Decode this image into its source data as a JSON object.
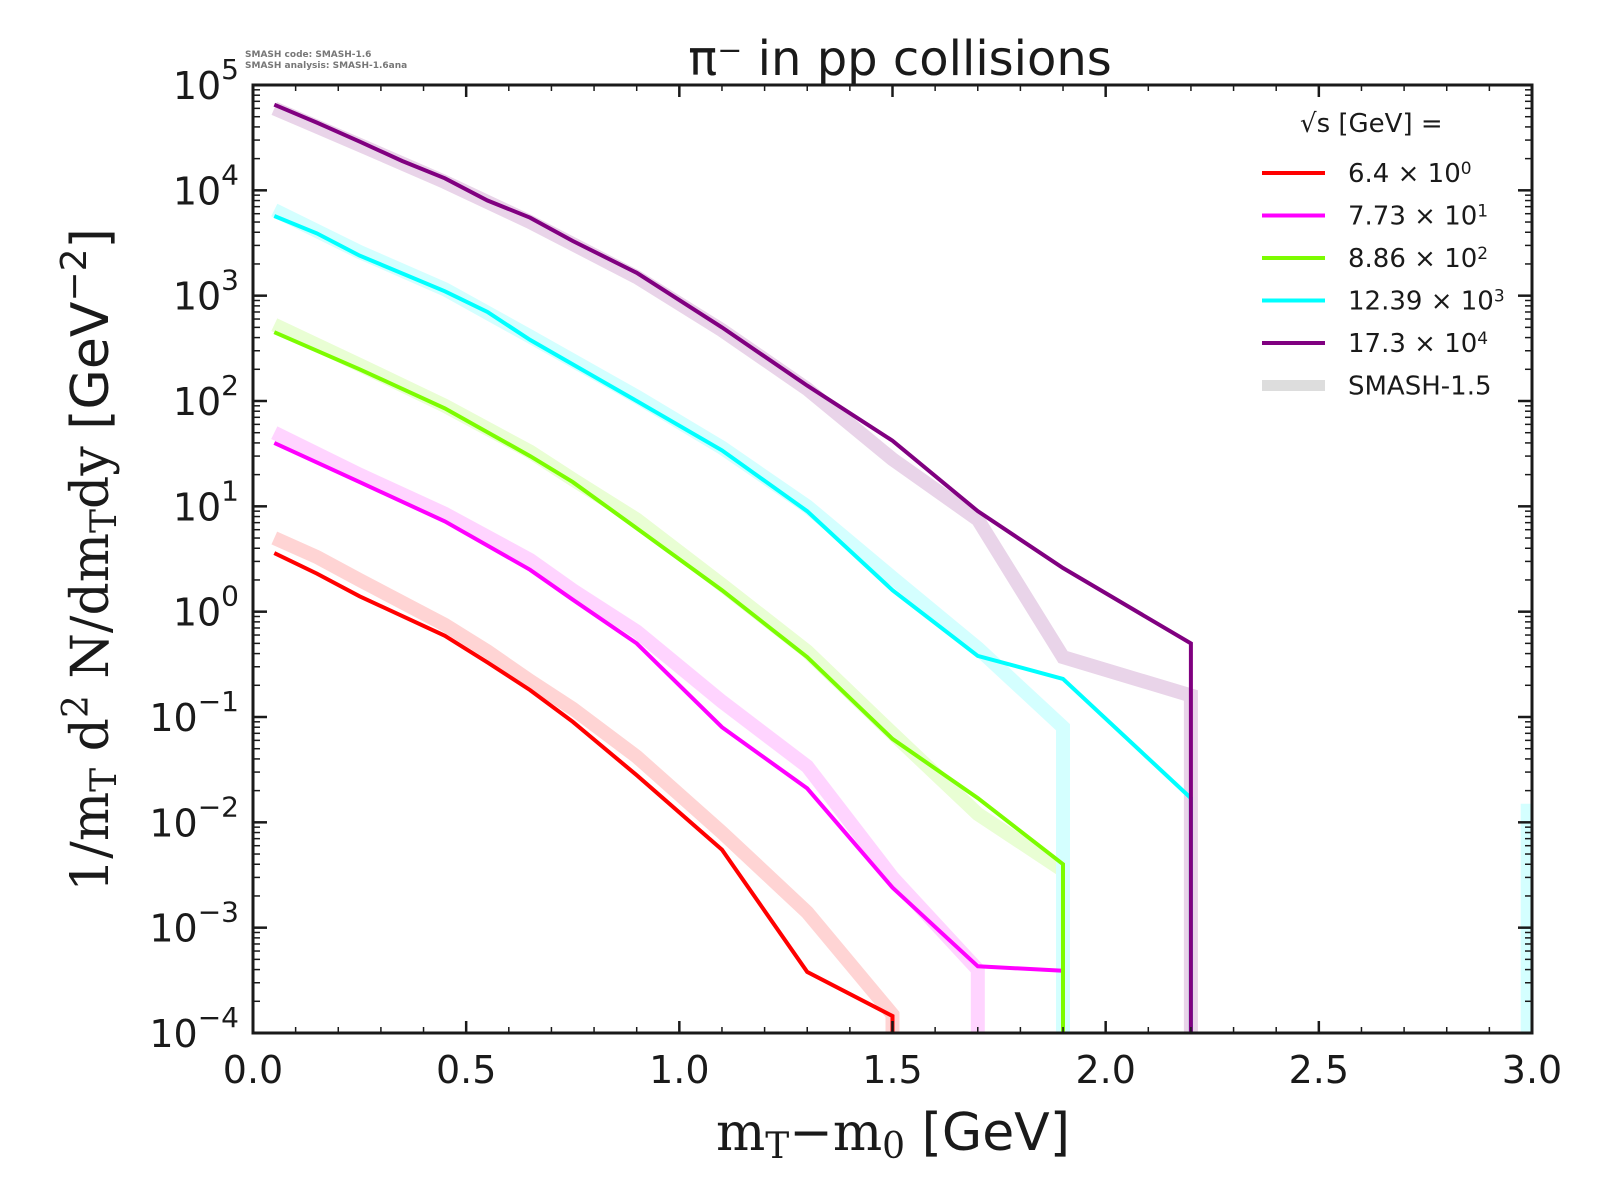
{
  "meta": {
    "line1": "SMASH code:      SMASH-1.6",
    "line2": "SMASH analysis: SMASH-1.6ana"
  },
  "chart_data": {
    "type": "line",
    "title": "π⁻ in pp collisions",
    "xlabel": "m_T−m_0 [GeV]",
    "ylabel": "1/m_T d² N/dm_T dy [GeV⁻²]",
    "yscale": "log",
    "xlim": [
      0.0,
      3.0
    ],
    "ylim": [
      0.0001,
      100000
    ],
    "xticks": [
      "0.0",
      "0.5",
      "1.0",
      "1.5",
      "2.0",
      "2.5",
      "3.0"
    ],
    "yticks": [
      {
        "base": "10",
        "exp": "5"
      },
      {
        "base": "10",
        "exp": "4"
      },
      {
        "base": "10",
        "exp": "3"
      },
      {
        "base": "10",
        "exp": "2"
      },
      {
        "base": "10",
        "exp": "1"
      },
      {
        "base": "10",
        "exp": "0"
      },
      {
        "base": "10",
        "exp": "−1"
      },
      {
        "base": "10",
        "exp": "−2"
      },
      {
        "base": "10",
        "exp": "−3"
      },
      {
        "base": "10",
        "exp": "−4"
      }
    ],
    "grid": false,
    "legend": {
      "placement": "top-right",
      "title": "√s  [GeV] =",
      "entries": [
        {
          "label": "6.4 × 10",
          "sup": "0",
          "color": "#ff0000"
        },
        {
          "label": "7.73 × 10",
          "sup": "1",
          "color": "#ff00ff"
        },
        {
          "label": "8.86 × 10",
          "sup": "2",
          "color": "#7cfc00"
        },
        {
          "label": "12.39 × 10",
          "sup": "3",
          "color": "#00ffff"
        },
        {
          "label": "17.3 × 10",
          "sup": "4",
          "color": "#800080"
        },
        {
          "label": "SMASH-1.5",
          "sup": "",
          "color": "#dddddd"
        }
      ]
    },
    "series": [
      {
        "name": "6.4 × 10^0",
        "color": "#ff0000",
        "x": [
          0.05,
          0.15,
          0.25,
          0.45,
          0.55,
          0.65,
          0.75,
          0.9,
          1.1,
          1.3,
          1.5,
          1.5
        ],
        "y": [
          3.6,
          2.3,
          1.4,
          0.59,
          0.33,
          0.18,
          0.09,
          0.028,
          0.0055,
          0.00038,
          0.000145,
          0.0001
        ]
      },
      {
        "name": "SMASH-1.5 (6.4)",
        "color": "#ff0000",
        "reference": true,
        "x": [
          0.05,
          0.15,
          0.25,
          0.45,
          0.55,
          0.65,
          0.75,
          0.9,
          1.1,
          1.3,
          1.5,
          1.5
        ],
        "y": [
          5.0,
          3.3,
          2.0,
          0.75,
          0.42,
          0.22,
          0.12,
          0.042,
          0.008,
          0.0014,
          0.00015,
          0.0001
        ]
      },
      {
        "name": "7.73 × 10^1",
        "color": "#ff00ff",
        "x": [
          0.05,
          0.25,
          0.45,
          0.65,
          0.75,
          0.9,
          1.1,
          1.3,
          1.5,
          1.7,
          1.9
        ],
        "y": [
          40,
          17,
          7.2,
          2.5,
          1.3,
          0.5,
          0.08,
          0.021,
          0.0024,
          0.00043,
          0.00039
        ]
      },
      {
        "name": "SMASH-1.5 (77.3)",
        "color": "#ff00ff",
        "reference": true,
        "x": [
          0.05,
          0.25,
          0.45,
          0.65,
          0.75,
          0.9,
          1.1,
          1.3,
          1.5,
          1.7,
          1.7
        ],
        "y": [
          50,
          20,
          8.5,
          3.1,
          1.6,
          0.65,
          0.14,
          0.034,
          0.003,
          0.0004,
          0.0001
        ]
      },
      {
        "name": "8.86 × 10^2",
        "color": "#7cfc00",
        "x": [
          0.05,
          0.25,
          0.45,
          0.65,
          0.75,
          0.9,
          1.1,
          1.3,
          1.5,
          1.7,
          1.9,
          1.9
        ],
        "y": [
          450,
          200,
          85,
          30,
          17,
          6.2,
          1.6,
          0.37,
          0.062,
          0.017,
          0.004,
          0.0001
        ]
      },
      {
        "name": "SMASH-1.5 (886)",
        "color": "#7cfc00",
        "reference": true,
        "x": [
          0.05,
          0.25,
          0.45,
          0.65,
          0.75,
          0.9,
          1.1,
          1.3,
          1.5,
          1.7,
          1.9
        ],
        "y": [
          530,
          220,
          90,
          33,
          18,
          7.5,
          1.8,
          0.42,
          0.07,
          0.012,
          0.0035
        ]
      },
      {
        "name": "12.39 × 10^3",
        "color": "#00ffff",
        "x": [
          0.05,
          0.15,
          0.25,
          0.45,
          0.55,
          0.65,
          0.9,
          1.1,
          1.3,
          1.5,
          1.7,
          1.9,
          2.2,
          2.2
        ],
        "y": [
          5700,
          3900,
          2400,
          1100,
          700,
          380,
          100,
          34,
          9,
          1.6,
          0.38,
          0.23,
          0.017,
          0.0001
        ]
      },
      {
        "name": "SMASH-1.5 (12390)",
        "color": "#00ffff",
        "reference": true,
        "x": [
          0.05,
          0.25,
          0.45,
          0.65,
          0.9,
          1.1,
          1.3,
          1.5,
          1.7,
          1.9,
          1.9
        ],
        "y": [
          6500,
          2600,
          1150,
          410,
          110,
          36,
          10,
          2.1,
          0.45,
          0.08,
          0.0001
        ]
      },
      {
        "name": "17.3 × 10^4",
        "color": "#800080",
        "x": [
          0.05,
          0.15,
          0.25,
          0.35,
          0.45,
          0.55,
          0.65,
          0.75,
          0.9,
          1.1,
          1.3,
          1.5,
          1.7,
          1.9,
          2.2,
          2.2
        ],
        "y": [
          65000,
          44000,
          29000,
          19000,
          13000,
          8000,
          5500,
          3300,
          1650,
          500,
          140,
          42,
          9,
          2.6,
          0.5,
          0.0001
        ]
      },
      {
        "name": "SMASH-1.5 (17300)",
        "color": "#800080",
        "reference": true,
        "x": [
          0.05,
          0.25,
          0.45,
          0.65,
          0.9,
          1.1,
          1.3,
          1.5,
          1.7,
          1.9,
          2.2,
          2.2
        ],
        "y": [
          60000,
          27000,
          12000,
          5000,
          1500,
          470,
          130,
          28,
          7.5,
          0.37,
          0.16,
          0.0001
        ]
      },
      {
        "name": "SMASH-1.5 (edge)",
        "color": "#00ffff",
        "reference": true,
        "x": [
          2.99,
          2.99
        ],
        "y": [
          0.015,
          0.0001
        ]
      }
    ]
  }
}
